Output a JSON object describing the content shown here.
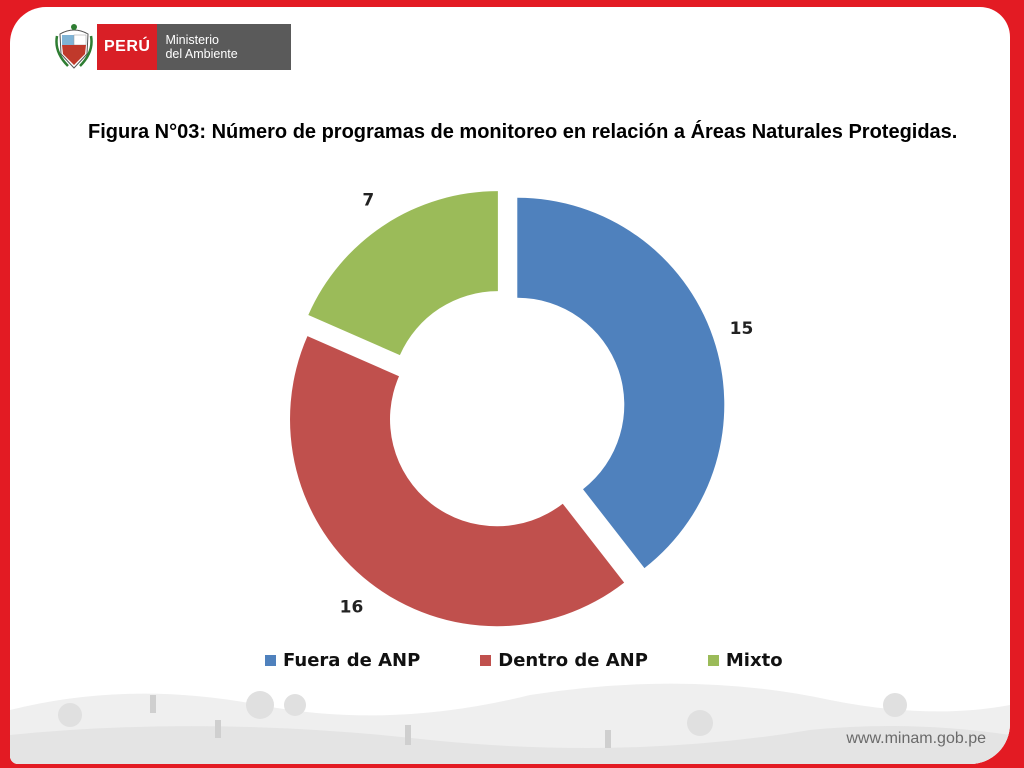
{
  "header": {
    "brand": "PERÚ",
    "ministry_line1": "Ministerio",
    "ministry_line2": "del Ambiente"
  },
  "title": "Figura N°03: Número de programas de monitoreo en relación a Áreas Naturales Protegidas.",
  "chart_data": {
    "type": "pie",
    "variant": "donut-exploded",
    "categories": [
      "Fuera de ANP",
      "Dentro de ANP",
      "Mixto"
    ],
    "values": [
      15,
      16,
      7
    ],
    "colors": [
      "#4f81bd",
      "#c0504d",
      "#9bbb59"
    ],
    "legend_position": "bottom",
    "data_labels": [
      "15",
      "16",
      "7"
    ]
  },
  "footer": {
    "url": "www.minam.gob.pe"
  }
}
